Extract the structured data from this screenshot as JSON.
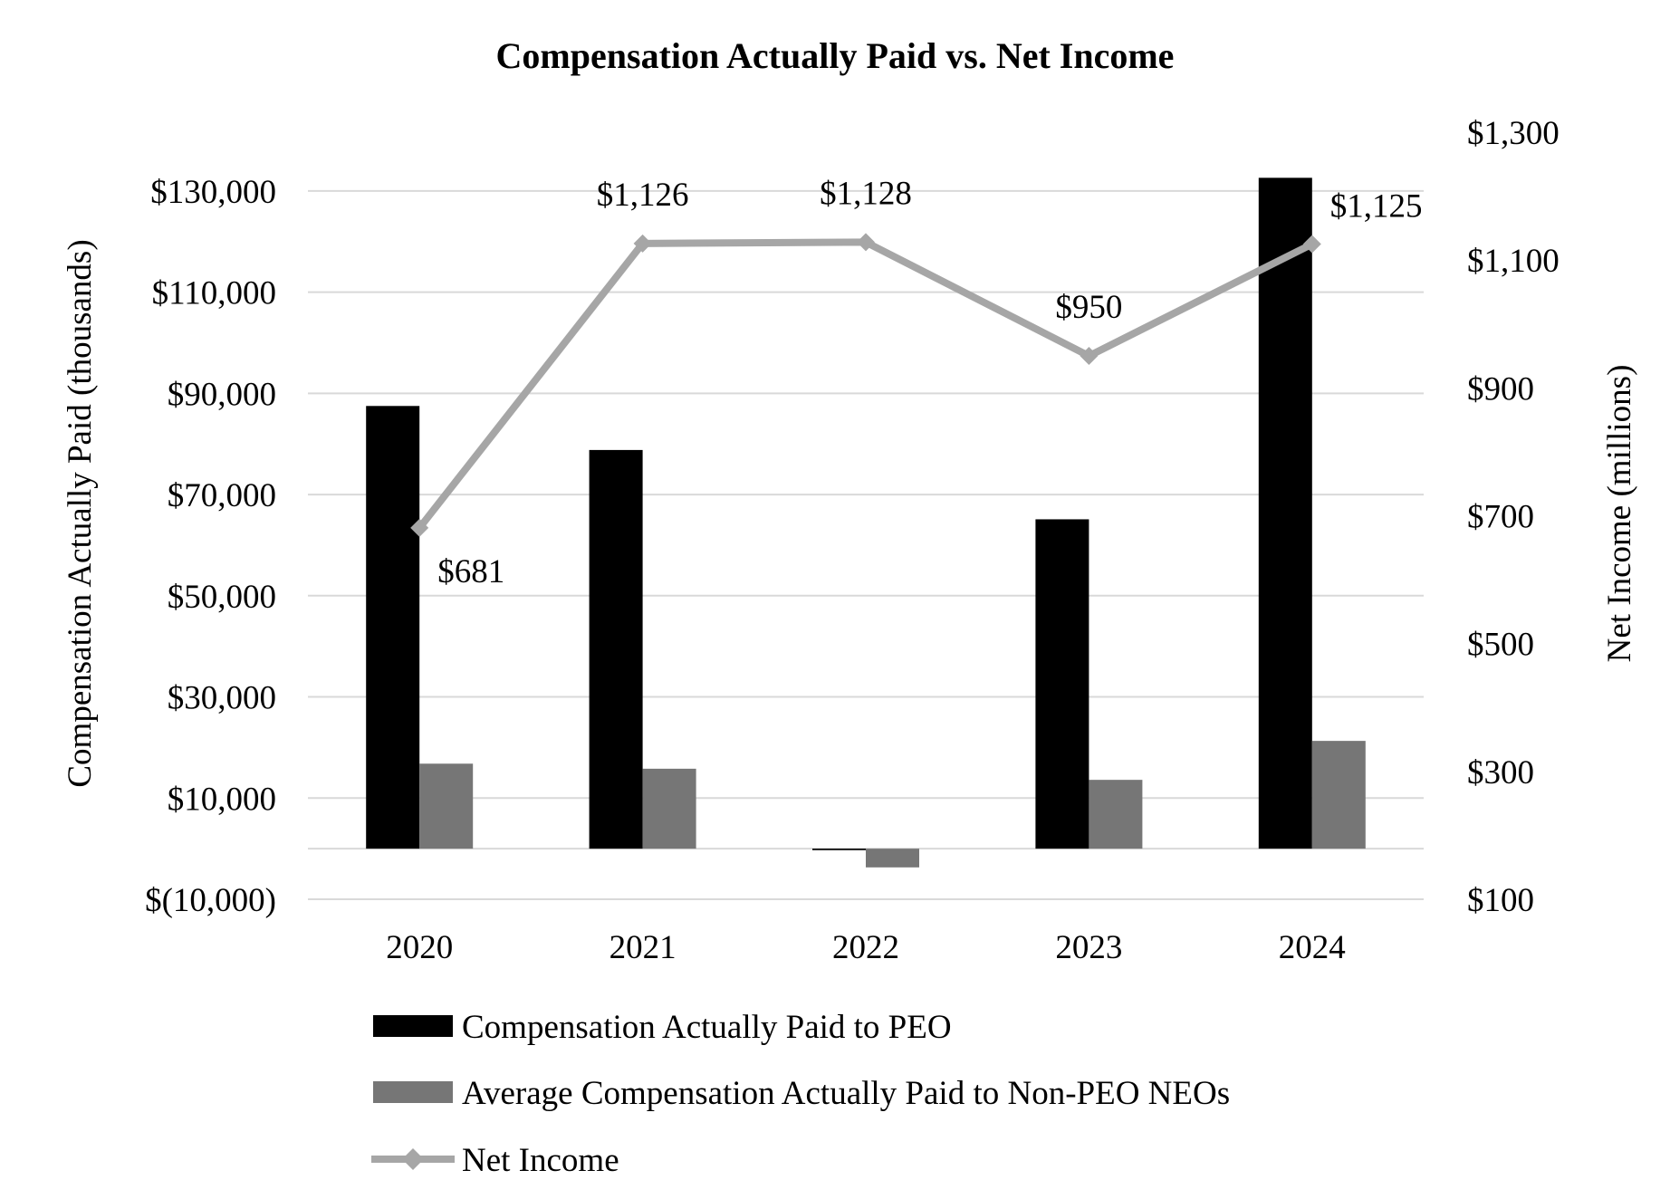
{
  "chart_data": {
    "type": "bar+line",
    "title": "Compensation Actually Paid vs. Net Income",
    "categories": [
      "2020",
      "2021",
      "2022",
      "2023",
      "2024"
    ],
    "left_axis": {
      "label": "Compensation Actually Paid (thousands)",
      "range": [
        -10000,
        140000
      ],
      "tick_values": [
        -10000,
        10000,
        30000,
        50000,
        70000,
        90000,
        110000,
        130000
      ],
      "tick_labels": [
        "$(10,000)",
        "$10,000",
        "$30,000",
        "$50,000",
        "$70,000",
        "$90,000",
        "$110,000",
        "$130,000"
      ]
    },
    "right_axis": {
      "label": "Net Income (millions)",
      "range": [
        100,
        1300
      ],
      "tick_values": [
        100,
        300,
        500,
        700,
        900,
        1100,
        1300
      ],
      "tick_labels": [
        "$100",
        "$300",
        "$500",
        "$700",
        "$900",
        "$1,100",
        "$1,300"
      ]
    },
    "series": [
      {
        "name": "Compensation Actually Paid to PEO",
        "kind": "bar",
        "axis": "left",
        "color": "#000000",
        "values": [
          87500,
          78800,
          -300,
          65100,
          132600
        ]
      },
      {
        "name": "Average Compensation Actually Paid to Non-PEO NEOs",
        "kind": "bar",
        "axis": "left",
        "color": "#767676",
        "values": [
          16800,
          15800,
          -3700,
          13600,
          21300
        ]
      },
      {
        "name": "Net Income",
        "kind": "line",
        "axis": "right",
        "color": "#a6a6a6",
        "values": [
          681,
          1126,
          1128,
          950,
          1125
        ],
        "data_labels": [
          "$681",
          "$1,126",
          "$1,128",
          "$950",
          "$1,125"
        ]
      }
    ],
    "legend": [
      "Compensation Actually Paid to PEO",
      "Average Compensation Actually Paid to Non-PEO NEOs",
      "Net Income"
    ],
    "legend_position": "bottom",
    "grid": true
  }
}
